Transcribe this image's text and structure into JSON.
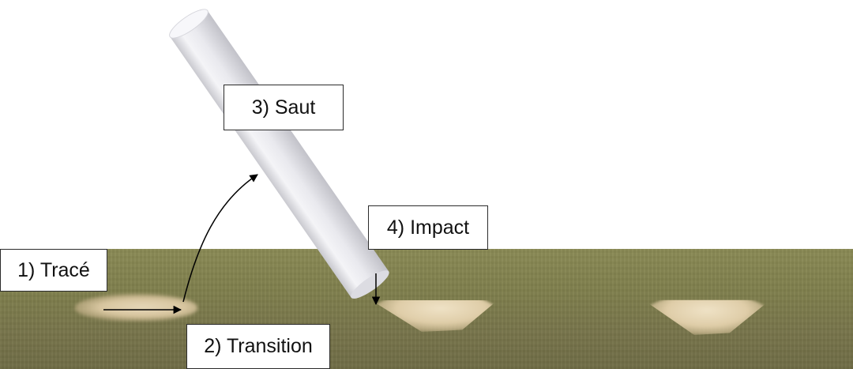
{
  "labels": {
    "trace": "1) Tracé",
    "transition": "2) Transition",
    "saut": "3) Saut",
    "impact": "4) Impact"
  },
  "colors": {
    "ground": "#7f7f4c",
    "chalk": "#ececf0",
    "arrow": "#000000",
    "box_border": "#2b2b2b"
  }
}
